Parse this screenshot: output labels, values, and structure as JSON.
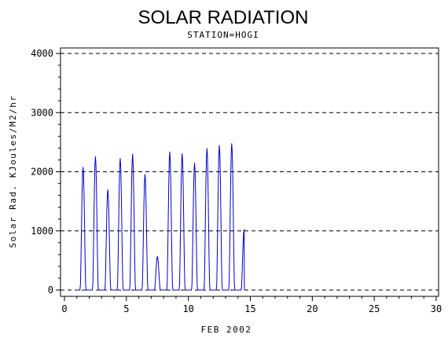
{
  "chart_data": {
    "type": "line",
    "title": "SOLAR RADIATION",
    "subtitle": "STATION=HOGI",
    "xlabel": "FEB 2002",
    "ylabel": "Solar Rad. KJoules/M2/hr",
    "xlim": [
      0,
      30
    ],
    "ylim": [
      0,
      4000
    ],
    "x_ticks": [
      0,
      5,
      10,
      15,
      20,
      25,
      30
    ],
    "y_ticks": [
      0,
      1000,
      2000,
      3000,
      4000
    ],
    "grid": "horizontal-dashed",
    "line_color": "#0000cc",
    "daily_peaks": [
      {
        "day": 1,
        "peak": 2080
      },
      {
        "day": 2,
        "peak": 2260
      },
      {
        "day": 3,
        "peak": 1700
      },
      {
        "day": 4,
        "peak": 2230
      },
      {
        "day": 5,
        "peak": 2300
      },
      {
        "day": 6,
        "peak": 1960
      },
      {
        "day": 7,
        "peak": 570
      },
      {
        "day": 8,
        "peak": 2340
      },
      {
        "day": 9,
        "peak": 2310
      },
      {
        "day": 10,
        "peak": 2150
      },
      {
        "day": 11,
        "peak": 2400
      },
      {
        "day": 12,
        "peak": 2450
      },
      {
        "day": 13,
        "peak": 2480
      },
      {
        "day": 14,
        "peak": 1030
      }
    ]
  }
}
